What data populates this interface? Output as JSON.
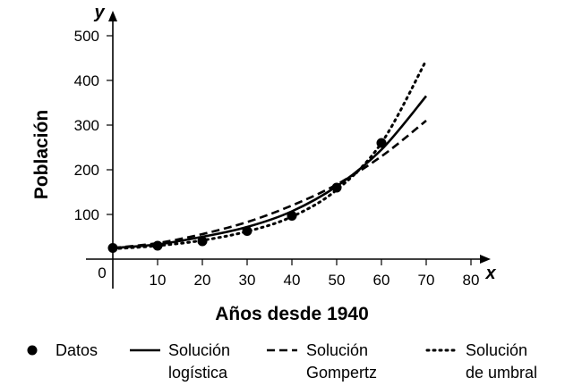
{
  "chart_data": {
    "type": "line",
    "xlabel": "Años desde 1940",
    "ylabel": "Población",
    "x_axis_letter": "x",
    "y_axis_letter": "y",
    "origin_label": "0",
    "xlim": [
      0,
      85
    ],
    "ylim": [
      -10,
      555
    ],
    "x_ticks": [
      10,
      20,
      30,
      40,
      50,
      60,
      70,
      80
    ],
    "y_ticks": [
      100,
      200,
      300,
      400,
      500
    ],
    "grid": false,
    "legend_position": "bottom",
    "series": [
      {
        "name": "Datos",
        "kind": "points",
        "color": "#000000",
        "points": [
          [
            0,
            25
          ],
          [
            10,
            30
          ],
          [
            20,
            40
          ],
          [
            30,
            63
          ],
          [
            40,
            97
          ],
          [
            50,
            160
          ],
          [
            60,
            260
          ]
        ]
      },
      {
        "name": "Solución logística",
        "kind": "line",
        "dash": "solid",
        "color": "#000000",
        "points": [
          [
            0,
            25
          ],
          [
            10,
            33
          ],
          [
            20,
            50
          ],
          [
            30,
            72
          ],
          [
            40,
            107
          ],
          [
            50,
            163
          ],
          [
            60,
            245
          ],
          [
            70,
            365
          ]
        ]
      },
      {
        "name": "Solución Gompertz",
        "kind": "line",
        "dash": "dashed",
        "color": "#000000",
        "points": [
          [
            0,
            25
          ],
          [
            10,
            36
          ],
          [
            20,
            56
          ],
          [
            30,
            83
          ],
          [
            40,
            120
          ],
          [
            50,
            167
          ],
          [
            60,
            230
          ],
          [
            70,
            310
          ]
        ]
      },
      {
        "name": "Solución de umbral",
        "kind": "line",
        "dash": "dotted",
        "color": "#000000",
        "points": [
          [
            0,
            23
          ],
          [
            10,
            30
          ],
          [
            20,
            42
          ],
          [
            30,
            62
          ],
          [
            40,
            95
          ],
          [
            50,
            155
          ],
          [
            60,
            260
          ],
          [
            70,
            445
          ]
        ]
      }
    ]
  },
  "legend": [
    {
      "symbol": "point",
      "lines": [
        "Datos"
      ]
    },
    {
      "symbol": "solid",
      "lines": [
        "Solución",
        "logística"
      ]
    },
    {
      "symbol": "dashed",
      "lines": [
        "Solución",
        "Gompertz"
      ]
    },
    {
      "symbol": "dotted",
      "lines": [
        "Solución",
        "de umbral"
      ]
    }
  ]
}
